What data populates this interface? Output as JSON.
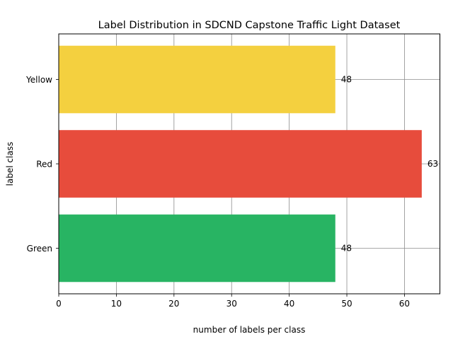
{
  "chart_data": {
    "type": "bar",
    "orientation": "horizontal",
    "title": "Label Distribution in SDCND Capstone Traffic Light Dataset",
    "xlabel": "number of labels per class",
    "ylabel": "label class",
    "categories": [
      "Green",
      "Red",
      "Yellow"
    ],
    "values": [
      48,
      63,
      48
    ],
    "colors": [
      "#28b463",
      "#e74c3c",
      "#f4d03f"
    ],
    "xlim": [
      0,
      66.15
    ],
    "xticks": [
      0,
      10,
      20,
      30,
      40,
      50,
      60
    ],
    "grid": true
  }
}
